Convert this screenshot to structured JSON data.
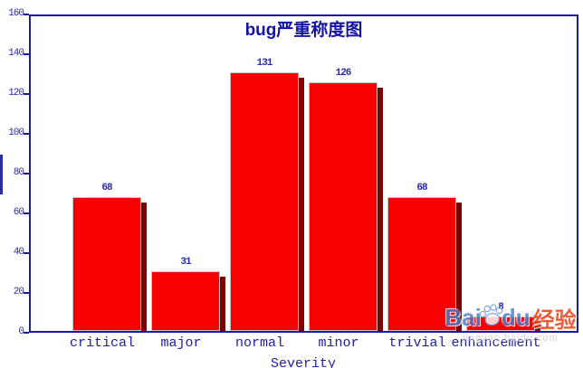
{
  "chart_data": {
    "type": "bar",
    "title": "bug严重称度图",
    "xlabel": "Severity",
    "ylabel": "",
    "categories": [
      "critical",
      "major",
      "normal",
      "minor",
      "trivial",
      "enhancement"
    ],
    "values": [
      68,
      31,
      131,
      126,
      68,
      8
    ],
    "ylim": [
      0,
      160
    ],
    "yticks": [
      0,
      20,
      40,
      60,
      80,
      100,
      120,
      140,
      160
    ],
    "grid": false,
    "legend": "none",
    "bar_color": "#f60000",
    "bar_shadow_color": "#7c0101",
    "bar_border_color": "#c4c4c4",
    "axis_color": "#1a1a9c",
    "text_color": "#2b2ba8"
  },
  "watermark": {
    "brand_prefix": "Bai",
    "brand_suffix": "du",
    "brand_cn": "经验",
    "site": "jingyan.baidu.com"
  }
}
